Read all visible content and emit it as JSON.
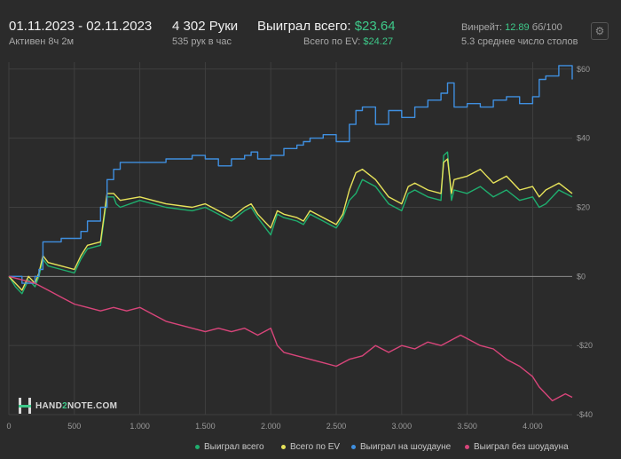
{
  "header": {
    "date_range": "01.11.2023 - 02.11.2023",
    "active": "Активен 8ч 2м",
    "hands": "4 302 Руки",
    "hands_per_hour": "535 рук в час",
    "won_label": "Выиграл всего:",
    "won_value": "$23.64",
    "ev_label": "Всего по EV:",
    "ev_value": "$24.27",
    "winrate_label": "Винрейт:",
    "winrate_value": "12.89",
    "winrate_unit": "бб/100",
    "avg_tables": "5.3 среднее число столов",
    "settings_icon": "gear-icon"
  },
  "logo": {
    "text_a": "HAND",
    "text_b": "2",
    "text_c": "NOTE.COM"
  },
  "colors": {
    "won": "#1fae6e",
    "ev": "#e7e35a",
    "showdown": "#3f8fe0",
    "nonshowdown": "#d8457a",
    "grid": "#3f3f3f",
    "zero": "#8a8a8a"
  },
  "chart_data": {
    "type": "line",
    "title": "",
    "xlabel": "",
    "ylabel": "",
    "xlim": [
      0,
      4302
    ],
    "ylim": [
      -40,
      62
    ],
    "x_ticks": [
      0,
      500,
      1000,
      1500,
      2000,
      2500,
      3000,
      3500,
      4000
    ],
    "x_tick_labels": [
      "0",
      "500",
      "1.000",
      "1.500",
      "2.000",
      "2.500",
      "3.000",
      "3.500",
      "4.000"
    ],
    "y_ticks": [
      60,
      40,
      20,
      0,
      -20,
      -40
    ],
    "y_tick_labels": [
      "$60",
      "$40",
      "$20",
      "$0",
      "-$20",
      "-$40"
    ],
    "legend_position": "bottom",
    "series": [
      {
        "name": "Выиграл всего",
        "key": "won",
        "x": [
          0,
          50,
          100,
          150,
          200,
          230,
          260,
          300,
          400,
          500,
          550,
          600,
          700,
          750,
          800,
          820,
          850,
          1000,
          1200,
          1400,
          1500,
          1600,
          1700,
          1800,
          1850,
          1900,
          2000,
          2050,
          2100,
          2200,
          2250,
          2300,
          2400,
          2500,
          2550,
          2600,
          2650,
          2700,
          2800,
          2900,
          3000,
          3050,
          3100,
          3200,
          3300,
          3320,
          3350,
          3380,
          3400,
          3500,
          3600,
          3700,
          3800,
          3900,
          4000,
          4050,
          4100,
          4200,
          4302
        ],
        "y": [
          0,
          -3,
          -5,
          -1,
          -3,
          0,
          5,
          3,
          2,
          1,
          5,
          8,
          9,
          23,
          23,
          21,
          20,
          22,
          20,
          19,
          20,
          18,
          16,
          19,
          20,
          17,
          12,
          18,
          17,
          16,
          15,
          18,
          16,
          14,
          17,
          22,
          24,
          28,
          26,
          21,
          19,
          24,
          25,
          23,
          22,
          35,
          36,
          22,
          25,
          24,
          26,
          23,
          25,
          22,
          23,
          20,
          21,
          25,
          23
        ]
      },
      {
        "name": "Всего по EV",
        "key": "ev",
        "x": [
          0,
          50,
          100,
          150,
          200,
          230,
          260,
          300,
          400,
          500,
          550,
          600,
          700,
          750,
          800,
          850,
          1000,
          1200,
          1400,
          1500,
          1600,
          1700,
          1800,
          1850,
          1900,
          2000,
          2050,
          2100,
          2200,
          2250,
          2300,
          2400,
          2500,
          2550,
          2600,
          2650,
          2700,
          2800,
          2900,
          3000,
          3050,
          3100,
          3200,
          3300,
          3320,
          3350,
          3380,
          3400,
          3500,
          3600,
          3700,
          3800,
          3900,
          4000,
          4050,
          4100,
          4200,
          4302
        ],
        "y": [
          0,
          -2,
          -4,
          0,
          -2,
          1,
          6,
          4,
          3,
          2,
          6,
          9,
          10,
          24,
          24,
          22,
          23,
          21,
          20,
          21,
          19,
          17,
          20,
          21,
          18,
          14,
          19,
          18,
          17,
          16,
          19,
          17,
          15,
          18,
          25,
          30,
          31,
          28,
          23,
          21,
          26,
          27,
          25,
          24,
          33,
          34,
          24,
          28,
          29,
          31,
          27,
          29,
          25,
          26,
          23,
          25,
          27,
          24
        ]
      },
      {
        "name": "Выиграл на шоудауне",
        "key": "showdown",
        "x": [
          0,
          100,
          200,
          230,
          260,
          400,
          550,
          600,
          700,
          750,
          800,
          850,
          1000,
          1200,
          1400,
          1500,
          1600,
          1700,
          1800,
          1850,
          1900,
          2000,
          2100,
          2200,
          2250,
          2300,
          2400,
          2500,
          2600,
          2650,
          2700,
          2800,
          2900,
          3000,
          3100,
          3200,
          3300,
          3350,
          3400,
          3500,
          3600,
          3700,
          3800,
          3900,
          4000,
          4050,
          4100,
          4200,
          4250,
          4302
        ],
        "y": [
          0,
          -2,
          0,
          2,
          10,
          11,
          13,
          16,
          20,
          28,
          31,
          33,
          33,
          34,
          35,
          34,
          32,
          34,
          35,
          36,
          34,
          35,
          37,
          38,
          39,
          40,
          41,
          39,
          44,
          48,
          49,
          44,
          48,
          46,
          49,
          51,
          53,
          56,
          49,
          50,
          49,
          51,
          52,
          50,
          52,
          57,
          58,
          61,
          61,
          57
        ]
      },
      {
        "name": "Выиграл без шоудауна",
        "key": "nonshowdown",
        "x": [
          0,
          100,
          200,
          250,
          300,
          400,
          500,
          600,
          700,
          800,
          900,
          1000,
          1100,
          1200,
          1300,
          1400,
          1500,
          1600,
          1700,
          1800,
          1900,
          2000,
          2050,
          2100,
          2200,
          2300,
          2400,
          2500,
          2600,
          2700,
          2800,
          2900,
          3000,
          3100,
          3200,
          3300,
          3400,
          3450,
          3500,
          3600,
          3700,
          3800,
          3900,
          4000,
          4050,
          4100,
          4150,
          4200,
          4250,
          4302
        ],
        "y": [
          0,
          -1,
          -2,
          -3,
          -4,
          -6,
          -8,
          -9,
          -10,
          -9,
          -10,
          -9,
          -11,
          -13,
          -14,
          -15,
          -16,
          -15,
          -16,
          -15,
          -17,
          -15,
          -20,
          -22,
          -23,
          -24,
          -25,
          -26,
          -24,
          -23,
          -20,
          -22,
          -20,
          -21,
          -19,
          -20,
          -18,
          -17,
          -18,
          -20,
          -21,
          -24,
          -26,
          -29,
          -32,
          -34,
          -36,
          -35,
          -34,
          -35
        ]
      }
    ]
  }
}
